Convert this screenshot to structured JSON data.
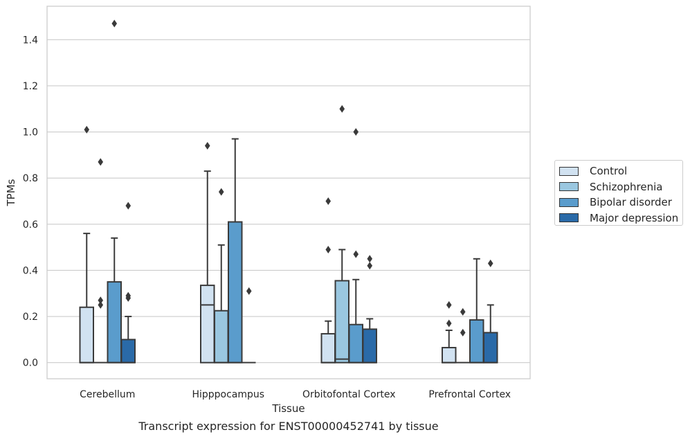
{
  "chart_data": {
    "type": "box",
    "xlabel": "Tissue",
    "ylabel": "TPMs",
    "caption": "Transcript expression for ENST00000452741 by tissue",
    "ylim": [
      -0.07,
      1.545
    ],
    "yticks": [
      0.0,
      0.2,
      0.4,
      0.6,
      0.8,
      1.0,
      1.2,
      1.4
    ],
    "ytick_labels": [
      "0.0",
      "0.2",
      "0.4",
      "0.6",
      "0.8",
      "1.0",
      "1.2",
      "1.4"
    ],
    "grid": "horizontal",
    "legend_position": "outside-right",
    "categories": [
      "Cerebellum",
      "Hipppocampus",
      "Orbitofontal Cortex",
      "Prefrontal Cortex"
    ],
    "series": [
      {
        "name": "Control",
        "color": "#d1e2f1",
        "boxes": [
          {
            "q1": 0.0,
            "median": 0.0,
            "q3": 0.24,
            "whisker_low": 0.0,
            "whisker_high": 0.56,
            "outliers": [
              1.01
            ]
          },
          {
            "q1": 0.0,
            "median": 0.25,
            "q3": 0.335,
            "whisker_low": 0.0,
            "whisker_high": 0.83,
            "outliers": [
              0.94
            ]
          },
          {
            "q1": 0.0,
            "median": 0.0,
            "q3": 0.125,
            "whisker_low": 0.0,
            "whisker_high": 0.18,
            "outliers": [
              0.49,
              0.7
            ]
          },
          {
            "q1": 0.0,
            "median": 0.0,
            "q3": 0.065,
            "whisker_low": 0.0,
            "whisker_high": 0.14,
            "outliers": [
              0.17,
              0.25
            ]
          }
        ]
      },
      {
        "name": "Schizophrenia",
        "color": "#9ac7e0",
        "boxes": [
          {
            "q1": 0.0,
            "median": 0.0,
            "q3": 0.0,
            "whisker_low": 0.0,
            "whisker_high": 0.0,
            "outliers": [
              0.25,
              0.27,
              0.87
            ]
          },
          {
            "q1": 0.0,
            "median": 0.0,
            "q3": 0.225,
            "whisker_low": 0.0,
            "whisker_high": 0.51,
            "outliers": [
              0.74
            ]
          },
          {
            "q1": 0.0,
            "median": 0.015,
            "q3": 0.355,
            "whisker_low": 0.0,
            "whisker_high": 0.49,
            "outliers": [
              1.1
            ]
          },
          {
            "q1": 0.0,
            "median": 0.0,
            "q3": 0.0,
            "whisker_low": 0.0,
            "whisker_high": 0.0,
            "outliers": [
              0.13,
              0.22
            ]
          }
        ]
      },
      {
        "name": "Bipolar disorder",
        "color": "#5a9ccc",
        "boxes": [
          {
            "q1": 0.0,
            "median": 0.0,
            "q3": 0.35,
            "whisker_low": 0.0,
            "whisker_high": 0.54,
            "outliers": [
              1.47
            ]
          },
          {
            "q1": 0.0,
            "median": 0.0,
            "q3": 0.61,
            "whisker_low": 0.0,
            "whisker_high": 0.97,
            "outliers": []
          },
          {
            "q1": 0.0,
            "median": 0.0,
            "q3": 0.165,
            "whisker_low": 0.0,
            "whisker_high": 0.36,
            "outliers": [
              0.47,
              1.0
            ]
          },
          {
            "q1": 0.0,
            "median": 0.0,
            "q3": 0.185,
            "whisker_low": 0.0,
            "whisker_high": 0.45,
            "outliers": []
          }
        ]
      },
      {
        "name": "Major depression",
        "color": "#2a6aa8",
        "boxes": [
          {
            "q1": 0.0,
            "median": 0.0,
            "q3": 0.1,
            "whisker_low": 0.0,
            "whisker_high": 0.2,
            "outliers": [
              0.28,
              0.29,
              0.68
            ]
          },
          {
            "q1": 0.0,
            "median": 0.0,
            "q3": 0.0,
            "whisker_low": 0.0,
            "whisker_high": 0.0,
            "outliers": [
              0.31
            ]
          },
          {
            "q1": 0.0,
            "median": 0.0,
            "q3": 0.145,
            "whisker_low": 0.0,
            "whisker_high": 0.19,
            "outliers": [
              0.42,
              0.45
            ]
          },
          {
            "q1": 0.0,
            "median": 0.0,
            "q3": 0.13,
            "whisker_low": 0.0,
            "whisker_high": 0.25,
            "outliers": [
              0.43
            ]
          }
        ]
      }
    ]
  }
}
